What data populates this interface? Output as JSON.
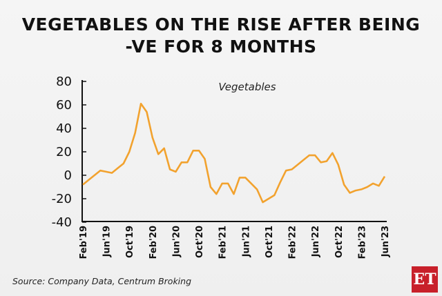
{
  "title_line1": "VEGETABLES ON THE RISE AFTER BEING",
  "title_line2": "-VE FOR 8 MONTHS",
  "source": "Source: Company Data, Centrum Broking",
  "logo": "ET",
  "chart_data": {
    "type": "line",
    "title": "",
    "annotation": "Vegetables",
    "xlabel": "",
    "ylabel": "",
    "ylim": [
      -40,
      80
    ],
    "yticks": [
      80,
      60,
      40,
      20,
      0,
      -20,
      -40
    ],
    "grid": false,
    "line_color": "#F2A22E",
    "xtick_labels": [
      "Feb'19",
      "Jun'19",
      "Oct'19",
      "Feb'20",
      "Jun'20",
      "Oct'20",
      "Feb'21",
      "Jun'21",
      "Oct'21",
      "Feb'22",
      "Jun'22",
      "Oct'22",
      "Feb'23",
      "Jun'23"
    ],
    "x": [
      "Feb'19",
      "Mar'19",
      "Apr'19",
      "May'19",
      "Jun'19",
      "Jul'19",
      "Aug'19",
      "Sep'19",
      "Oct'19",
      "Nov'19",
      "Dec'19",
      "Jan'20",
      "Feb'20",
      "Mar'20",
      "Apr'20",
      "May'20",
      "Jun'20",
      "Jul'20",
      "Aug'20",
      "Sep'20",
      "Oct'20",
      "Nov'20",
      "Dec'20",
      "Jan'21",
      "Feb'21",
      "Mar'21",
      "Apr'21",
      "May'21",
      "Jun'21",
      "Jul'21",
      "Aug'21",
      "Sep'21",
      "Oct'21",
      "Nov'21",
      "Dec'21",
      "Jan'22",
      "Feb'22",
      "Mar'22",
      "Apr'22",
      "May'22",
      "Jun'22",
      "Jul'22",
      "Aug'22",
      "Sep'22",
      "Oct'22",
      "Nov'22",
      "Dec'22",
      "Jan'23",
      "Feb'23",
      "Mar'23",
      "Apr'23",
      "May'23",
      "Jun'23"
    ],
    "series": [
      {
        "values": [
          -8,
          -4,
          0,
          4,
          3,
          2,
          6,
          10,
          20,
          36,
          61,
          54,
          32,
          18,
          23,
          5,
          3,
          11,
          11,
          21,
          21,
          14,
          -10,
          -16,
          -7,
          -7,
          -16,
          -2,
          -2,
          -7,
          -12,
          -23,
          -20,
          -17,
          -6,
          4,
          5,
          9,
          13,
          17,
          17,
          11,
          12,
          19,
          9,
          -8,
          -15,
          -13,
          -12,
          -10,
          -7,
          -9,
          -1
        ]
      }
    ]
  }
}
